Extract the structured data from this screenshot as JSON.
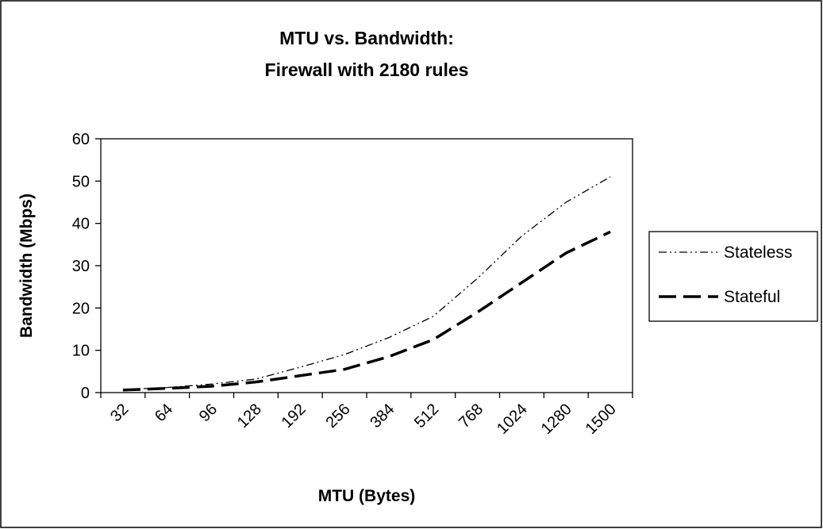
{
  "chart_data": {
    "type": "line",
    "title": [
      "MTU vs. Bandwidth:",
      "Firewall with 2180 rules"
    ],
    "x_label": "MTU (Bytes)",
    "y_label": "Bandwidth (Mbps)",
    "categories": [
      "32",
      "64",
      "96",
      "128",
      "192",
      "256",
      "384",
      "512",
      "768",
      "1024",
      "1280",
      "1500"
    ],
    "series": [
      {
        "name": "Stateless",
        "color": "#000000",
        "dash": "dash-dot-dot",
        "values": [
          0.7,
          1.2,
          2,
          3.2,
          6,
          9,
          13,
          18,
          27,
          37,
          45,
          51
        ]
      },
      {
        "name": "Stateful",
        "color": "#000000",
        "dash": "long-dash",
        "values": [
          0.6,
          1,
          1.5,
          2.5,
          4,
          5.5,
          8.5,
          12.5,
          19,
          26,
          33,
          38
        ]
      }
    ],
    "ylim": [
      0,
      60
    ],
    "yticks": [
      0,
      10,
      20,
      30,
      40,
      50,
      60
    ],
    "grid": false,
    "legend": "right"
  }
}
